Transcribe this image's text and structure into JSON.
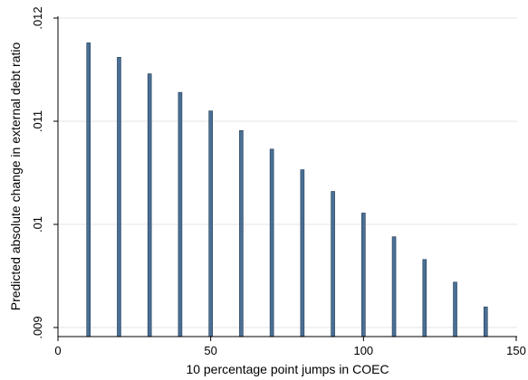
{
  "chart_data": {
    "type": "bar",
    "xlabel": "10 percentage point jumps in COEC",
    "ylabel": "Predicted absolute change in external debt ratio",
    "x": [
      10,
      20,
      30,
      40,
      50,
      60,
      70,
      80,
      90,
      100,
      110,
      120,
      130,
      140
    ],
    "values": [
      0.01176,
      0.01162,
      0.01146,
      0.01128,
      0.0111,
      0.01091,
      0.01073,
      0.01053,
      0.01032,
      0.01011,
      0.00988,
      0.00966,
      0.00944,
      0.0092
    ],
    "xlim": [
      0,
      150
    ],
    "ylim": [
      0.009,
      0.012
    ],
    "bar_base": 0.00891,
    "xticks": [
      {
        "value": 0,
        "label": "0"
      },
      {
        "value": 50,
        "label": "50"
      },
      {
        "value": 100,
        "label": "100"
      },
      {
        "value": 150,
        "label": "150"
      }
    ],
    "yticks": [
      {
        "value": 0.009,
        "label": ".009"
      },
      {
        "value": 0.01,
        "label": ".01"
      },
      {
        "value": 0.011,
        "label": ".011"
      },
      {
        "value": 0.012,
        "label": ".012"
      }
    ],
    "grid": true,
    "colors": {
      "bar_fill": "#4b6f93",
      "bar_stroke": "#1f3c5a",
      "grid": "#e6e6e6",
      "axis": "#000000"
    }
  }
}
